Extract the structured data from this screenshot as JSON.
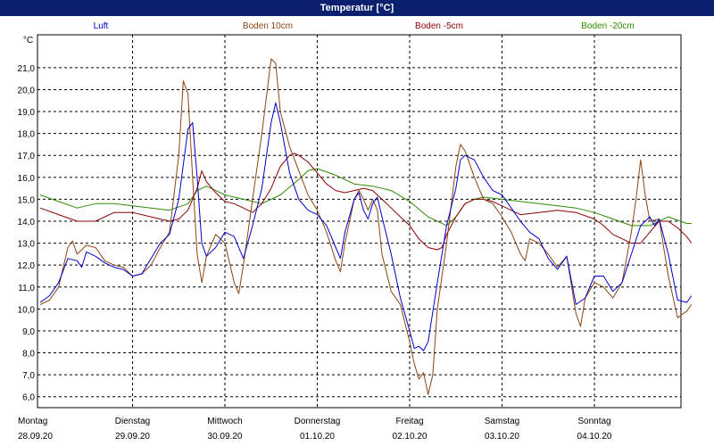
{
  "window": {
    "title": "Temperatur [°C]"
  },
  "chart_data": {
    "type": "line",
    "title": "Temperatur [°C]",
    "ylabel": "°C",
    "ylim": [
      5.5,
      22.5
    ],
    "xlim": [
      0,
      7.1
    ],
    "grid": true,
    "legend_position": "top",
    "y_ticks": [
      "6,0",
      "7,0",
      "8,0",
      "9,0",
      "10,0",
      "11,0",
      "12,0",
      "13,0",
      "14,0",
      "15,0",
      "16,0",
      "17,0",
      "18,0",
      "19,0",
      "20,0",
      "21,0"
    ],
    "x_ticks": [
      {
        "day": "Montag",
        "date": "28.09.20",
        "x": 0
      },
      {
        "day": "Dienstag",
        "date": "29.09.20",
        "x": 1
      },
      {
        "day": "Mittwoch",
        "date": "30.09.20",
        "x": 2
      },
      {
        "day": "Donnerstag",
        "date": "01.10.20",
        "x": 3
      },
      {
        "day": "Freitag",
        "date": "02.10.20",
        "x": 4
      },
      {
        "day": "Samstag",
        "date": "03.10.20",
        "x": 5
      },
      {
        "day": "Sonntag",
        "date": "04.10.20",
        "x": 6
      }
    ],
    "series": [
      {
        "name": "Luft",
        "color": "#0000cc",
        "points": [
          [
            0.0,
            10.3
          ],
          [
            0.1,
            10.6
          ],
          [
            0.2,
            11.2
          ],
          [
            0.3,
            12.3
          ],
          [
            0.4,
            12.2
          ],
          [
            0.45,
            11.9
          ],
          [
            0.5,
            12.6
          ],
          [
            0.6,
            12.4
          ],
          [
            0.7,
            12.1
          ],
          [
            0.8,
            11.9
          ],
          [
            0.9,
            11.8
          ],
          [
            1.0,
            11.5
          ],
          [
            1.1,
            11.6
          ],
          [
            1.2,
            12.3
          ],
          [
            1.3,
            13.0
          ],
          [
            1.4,
            13.4
          ],
          [
            1.5,
            15.0
          ],
          [
            1.6,
            18.2
          ],
          [
            1.65,
            18.5
          ],
          [
            1.7,
            16.0
          ],
          [
            1.75,
            13.0
          ],
          [
            1.8,
            12.4
          ],
          [
            1.9,
            12.8
          ],
          [
            2.0,
            13.5
          ],
          [
            2.1,
            13.3
          ],
          [
            2.2,
            12.3
          ],
          [
            2.3,
            13.8
          ],
          [
            2.4,
            15.5
          ],
          [
            2.5,
            18.5
          ],
          [
            2.55,
            19.4
          ],
          [
            2.6,
            18.5
          ],
          [
            2.7,
            16.2
          ],
          [
            2.8,
            15.0
          ],
          [
            2.9,
            14.5
          ],
          [
            3.0,
            14.3
          ],
          [
            3.1,
            13.8
          ],
          [
            3.2,
            12.8
          ],
          [
            3.25,
            12.3
          ],
          [
            3.3,
            13.5
          ],
          [
            3.4,
            15.0
          ],
          [
            3.45,
            15.3
          ],
          [
            3.5,
            14.5
          ],
          [
            3.55,
            14.1
          ],
          [
            3.6,
            14.8
          ],
          [
            3.65,
            15.1
          ],
          [
            3.7,
            14.2
          ],
          [
            3.8,
            12.5
          ],
          [
            3.9,
            10.5
          ],
          [
            4.0,
            9.0
          ],
          [
            4.05,
            8.2
          ],
          [
            4.1,
            8.3
          ],
          [
            4.15,
            8.1
          ],
          [
            4.2,
            8.5
          ],
          [
            4.3,
            11.2
          ],
          [
            4.4,
            13.8
          ],
          [
            4.5,
            15.5
          ],
          [
            4.55,
            16.8
          ],
          [
            4.6,
            17.0
          ],
          [
            4.7,
            16.8
          ],
          [
            4.8,
            16.0
          ],
          [
            4.9,
            15.4
          ],
          [
            5.0,
            15.2
          ],
          [
            5.1,
            14.6
          ],
          [
            5.2,
            14.0
          ],
          [
            5.3,
            13.5
          ],
          [
            5.4,
            13.2
          ],
          [
            5.5,
            12.3
          ],
          [
            5.6,
            11.8
          ],
          [
            5.7,
            12.4
          ],
          [
            5.8,
            10.2
          ],
          [
            5.9,
            10.5
          ],
          [
            6.0,
            11.5
          ],
          [
            6.1,
            11.5
          ],
          [
            6.2,
            10.8
          ],
          [
            6.3,
            11.2
          ],
          [
            6.4,
            12.5
          ],
          [
            6.5,
            13.8
          ],
          [
            6.6,
            14.2
          ],
          [
            6.65,
            13.8
          ],
          [
            6.7,
            14.1
          ],
          [
            6.8,
            12.5
          ],
          [
            6.9,
            10.4
          ],
          [
            7.0,
            10.3
          ],
          [
            7.05,
            10.6
          ]
        ]
      },
      {
        "name": "Boden 10cm",
        "color": "#8b4513",
        "points": [
          [
            0.0,
            10.2
          ],
          [
            0.1,
            10.4
          ],
          [
            0.2,
            11.0
          ],
          [
            0.3,
            12.8
          ],
          [
            0.35,
            13.1
          ],
          [
            0.4,
            12.5
          ],
          [
            0.5,
            12.9
          ],
          [
            0.6,
            12.8
          ],
          [
            0.7,
            12.2
          ],
          [
            0.8,
            12.0
          ],
          [
            0.9,
            11.9
          ],
          [
            1.0,
            11.5
          ],
          [
            1.1,
            11.6
          ],
          [
            1.2,
            12.0
          ],
          [
            1.3,
            12.8
          ],
          [
            1.4,
            13.5
          ],
          [
            1.5,
            17.0
          ],
          [
            1.55,
            20.4
          ],
          [
            1.6,
            19.8
          ],
          [
            1.65,
            16.0
          ],
          [
            1.7,
            12.5
          ],
          [
            1.75,
            11.2
          ],
          [
            1.8,
            12.4
          ],
          [
            1.9,
            13.4
          ],
          [
            2.0,
            13.0
          ],
          [
            2.1,
            11.2
          ],
          [
            2.15,
            10.7
          ],
          [
            2.2,
            12.0
          ],
          [
            2.3,
            15.0
          ],
          [
            2.4,
            18.0
          ],
          [
            2.5,
            21.4
          ],
          [
            2.55,
            21.2
          ],
          [
            2.6,
            19.0
          ],
          [
            2.7,
            17.4
          ],
          [
            2.8,
            16.3
          ],
          [
            2.9,
            15.2
          ],
          [
            3.0,
            14.5
          ],
          [
            3.1,
            13.5
          ],
          [
            3.2,
            12.2
          ],
          [
            3.25,
            11.7
          ],
          [
            3.3,
            13.0
          ],
          [
            3.4,
            15.0
          ],
          [
            3.45,
            15.4
          ],
          [
            3.5,
            15.0
          ],
          [
            3.55,
            14.5
          ],
          [
            3.6,
            15.0
          ],
          [
            3.65,
            14.5
          ],
          [
            3.7,
            12.5
          ],
          [
            3.8,
            10.8
          ],
          [
            3.9,
            10.2
          ],
          [
            4.0,
            8.5
          ],
          [
            4.05,
            7.5
          ],
          [
            4.1,
            6.8
          ],
          [
            4.15,
            7.1
          ],
          [
            4.2,
            6.1
          ],
          [
            4.25,
            7.0
          ],
          [
            4.3,
            10.0
          ],
          [
            4.4,
            13.0
          ],
          [
            4.5,
            16.5
          ],
          [
            4.55,
            17.5
          ],
          [
            4.6,
            17.2
          ],
          [
            4.7,
            16.0
          ],
          [
            4.8,
            15.0
          ],
          [
            4.9,
            14.8
          ],
          [
            5.0,
            14.2
          ],
          [
            5.1,
            13.5
          ],
          [
            5.2,
            12.5
          ],
          [
            5.25,
            12.2
          ],
          [
            5.3,
            13.2
          ],
          [
            5.4,
            13.0
          ],
          [
            5.5,
            12.5
          ],
          [
            5.6,
            11.9
          ],
          [
            5.7,
            12.4
          ],
          [
            5.8,
            9.8
          ],
          [
            5.85,
            9.2
          ],
          [
            5.9,
            10.5
          ],
          [
            6.0,
            11.2
          ],
          [
            6.1,
            11.0
          ],
          [
            6.2,
            10.5
          ],
          [
            6.3,
            11.2
          ],
          [
            6.4,
            13.5
          ],
          [
            6.45,
            15.0
          ],
          [
            6.5,
            16.8
          ],
          [
            6.55,
            15.2
          ],
          [
            6.6,
            14.0
          ],
          [
            6.7,
            14.1
          ],
          [
            6.8,
            11.5
          ],
          [
            6.9,
            9.6
          ],
          [
            7.0,
            9.9
          ],
          [
            7.05,
            10.2
          ]
        ]
      },
      {
        "name": "Boden -5cm",
        "color": "#8b0000",
        "points": [
          [
            0.0,
            14.6
          ],
          [
            0.2,
            14.3
          ],
          [
            0.4,
            14.0
          ],
          [
            0.6,
            14.0
          ],
          [
            0.8,
            14.4
          ],
          [
            1.0,
            14.4
          ],
          [
            1.2,
            14.2
          ],
          [
            1.4,
            14.0
          ],
          [
            1.5,
            14.1
          ],
          [
            1.6,
            14.5
          ],
          [
            1.7,
            15.5
          ],
          [
            1.75,
            16.3
          ],
          [
            1.8,
            15.8
          ],
          [
            1.9,
            15.3
          ],
          [
            2.0,
            14.9
          ],
          [
            2.1,
            14.8
          ],
          [
            2.2,
            14.6
          ],
          [
            2.3,
            14.4
          ],
          [
            2.4,
            14.8
          ],
          [
            2.5,
            15.5
          ],
          [
            2.6,
            16.5
          ],
          [
            2.7,
            17.0
          ],
          [
            2.75,
            17.1
          ],
          [
            2.8,
            17.0
          ],
          [
            2.9,
            16.7
          ],
          [
            3.0,
            16.2
          ],
          [
            3.1,
            15.7
          ],
          [
            3.2,
            15.4
          ],
          [
            3.3,
            15.3
          ],
          [
            3.4,
            15.4
          ],
          [
            3.5,
            15.5
          ],
          [
            3.6,
            15.4
          ],
          [
            3.7,
            15.0
          ],
          [
            3.8,
            14.6
          ],
          [
            3.9,
            14.2
          ],
          [
            4.0,
            13.8
          ],
          [
            4.1,
            13.2
          ],
          [
            4.2,
            12.8
          ],
          [
            4.3,
            12.7
          ],
          [
            4.35,
            12.8
          ],
          [
            4.4,
            13.4
          ],
          [
            4.5,
            14.2
          ],
          [
            4.6,
            14.8
          ],
          [
            4.7,
            15.0
          ],
          [
            4.8,
            15.0
          ],
          [
            4.9,
            14.9
          ],
          [
            5.0,
            14.7
          ],
          [
            5.1,
            14.5
          ],
          [
            5.2,
            14.3
          ],
          [
            5.4,
            14.4
          ],
          [
            5.6,
            14.5
          ],
          [
            5.8,
            14.4
          ],
          [
            6.0,
            14.1
          ],
          [
            6.1,
            13.8
          ],
          [
            6.2,
            13.4
          ],
          [
            6.3,
            13.2
          ],
          [
            6.4,
            13.0
          ],
          [
            6.5,
            13.0
          ],
          [
            6.6,
            13.5
          ],
          [
            6.7,
            14.0
          ],
          [
            6.8,
            14.0
          ],
          [
            6.9,
            13.7
          ],
          [
            7.0,
            13.3
          ],
          [
            7.05,
            13.0
          ]
        ]
      },
      {
        "name": "Boden -20cm",
        "color": "#2e8b00",
        "points": [
          [
            0.0,
            15.2
          ],
          [
            0.2,
            14.9
          ],
          [
            0.4,
            14.6
          ],
          [
            0.6,
            14.8
          ],
          [
            0.8,
            14.8
          ],
          [
            1.0,
            14.7
          ],
          [
            1.2,
            14.6
          ],
          [
            1.4,
            14.5
          ],
          [
            1.6,
            14.8
          ],
          [
            1.7,
            15.4
          ],
          [
            1.8,
            15.6
          ],
          [
            1.9,
            15.4
          ],
          [
            2.0,
            15.2
          ],
          [
            2.2,
            15.0
          ],
          [
            2.4,
            14.8
          ],
          [
            2.6,
            15.2
          ],
          [
            2.8,
            15.9
          ],
          [
            2.9,
            16.3
          ],
          [
            3.0,
            16.4
          ],
          [
            3.2,
            16.1
          ],
          [
            3.4,
            15.7
          ],
          [
            3.6,
            15.6
          ],
          [
            3.8,
            15.4
          ],
          [
            4.0,
            14.9
          ],
          [
            4.2,
            14.2
          ],
          [
            4.4,
            13.8
          ],
          [
            4.5,
            14.2
          ],
          [
            4.6,
            14.8
          ],
          [
            4.7,
            15.0
          ],
          [
            4.8,
            15.1
          ],
          [
            5.0,
            15.0
          ],
          [
            5.2,
            14.9
          ],
          [
            5.4,
            14.8
          ],
          [
            5.6,
            14.7
          ],
          [
            5.8,
            14.6
          ],
          [
            6.0,
            14.4
          ],
          [
            6.2,
            14.1
          ],
          [
            6.4,
            13.8
          ],
          [
            6.6,
            13.8
          ],
          [
            6.8,
            14.2
          ],
          [
            7.0,
            13.9
          ],
          [
            7.05,
            13.9
          ]
        ]
      }
    ]
  }
}
